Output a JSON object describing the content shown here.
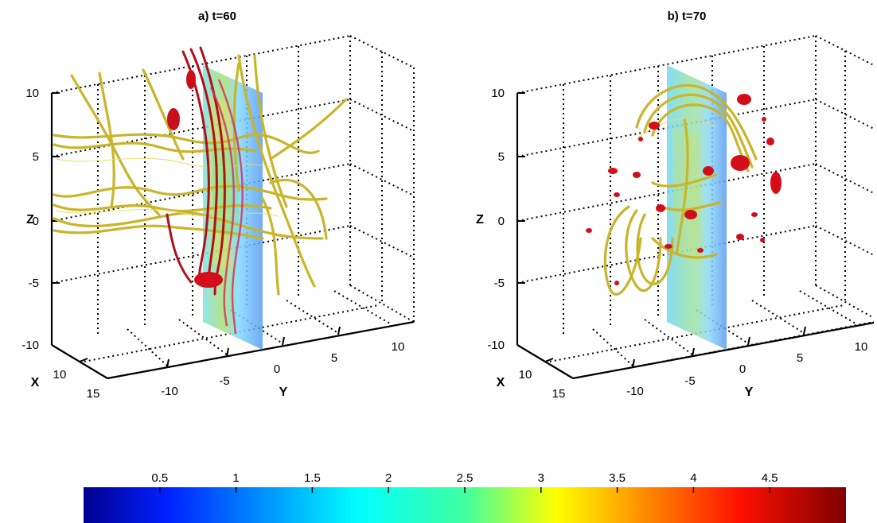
{
  "panels": [
    {
      "title": "a) t=60",
      "zlabel": "Z",
      "ylabel": "Y",
      "xlabel": "X",
      "zticks": [
        "10",
        "5",
        "0",
        "-5",
        "-10"
      ],
      "yticks": [
        "-10",
        "-5",
        "0",
        "5",
        "10"
      ],
      "xticks": [
        "10",
        "15"
      ]
    },
    {
      "title": "b) t=70",
      "zlabel": "Z",
      "ylabel": "Y",
      "xlabel": "X",
      "zticks": [
        "10",
        "5",
        "0",
        "-5",
        "-10"
      ],
      "yticks": [
        "-10",
        "-5",
        "0",
        "5",
        "10"
      ],
      "xticks": [
        "10",
        "15"
      ]
    }
  ],
  "colorbar": {
    "ticks": [
      "0.5",
      "1",
      "1.5",
      "2",
      "2.5",
      "3",
      "3.5",
      "4",
      "4.5"
    ],
    "min": 0,
    "max": 5
  },
  "chart_data": {
    "type": "3d-field-line-rendering",
    "panels": [
      {
        "title": "a) t=60",
        "zlim": [
          -10,
          10
        ],
        "ylim": [
          -10,
          10
        ],
        "xticks": [
          10,
          15
        ]
      },
      {
        "title": "b) t=70",
        "zlim": [
          -10,
          10
        ],
        "ylim": [
          -10,
          10
        ],
        "xticks": [
          10,
          15
        ]
      }
    ],
    "colorbar": {
      "range": [
        0,
        5
      ],
      "ticks": [
        0.5,
        1,
        1.5,
        2,
        2.5,
        3,
        3.5,
        4,
        4.5
      ]
    },
    "colors": {
      "field_lines": "#c9b52a",
      "isosurface": "#d40d1a",
      "plane": "#6fa8e8"
    }
  }
}
